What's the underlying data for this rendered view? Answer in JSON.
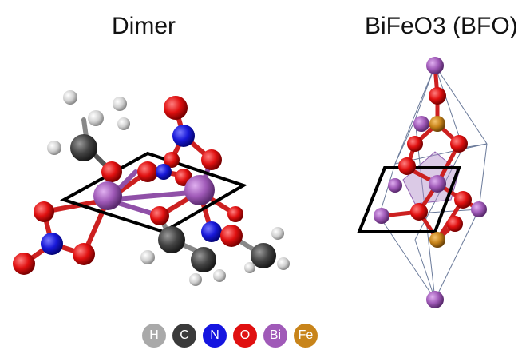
{
  "panels": {
    "left_title": "Dimer",
    "right_title": "BiFeO3 (BFO)"
  },
  "legend": [
    {
      "symbol": "H",
      "color": "#a9a9a9"
    },
    {
      "symbol": "C",
      "color": "#3a3a3a"
    },
    {
      "symbol": "N",
      "color": "#1515e0"
    },
    {
      "symbol": "O",
      "color": "#e01010"
    },
    {
      "symbol": "Bi",
      "color": "#a05ab8"
    },
    {
      "symbol": "Fe",
      "color": "#c8841a"
    }
  ]
}
